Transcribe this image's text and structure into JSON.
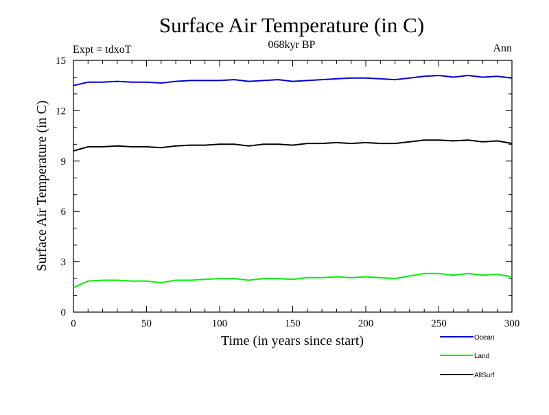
{
  "chart_data": {
    "type": "line",
    "title": "Surface Air Temperature (in C)",
    "subtitle": "068kyr BP",
    "annotation_left": "Expt = tdxoT",
    "annotation_right": "Ann",
    "xlabel": "Time (in years since start)",
    "ylabel": "Surface Air Temperature (in C)",
    "xlim": [
      0,
      300
    ],
    "ylim": [
      0,
      15
    ],
    "xticks": [
      0,
      50,
      100,
      150,
      200,
      250,
      300
    ],
    "yticks": [
      0,
      3,
      6,
      9,
      12,
      15
    ],
    "grid": false,
    "legend_position": "bottom-right",
    "x": [
      0,
      10,
      20,
      30,
      40,
      50,
      60,
      70,
      80,
      90,
      100,
      110,
      120,
      130,
      140,
      150,
      160,
      170,
      180,
      190,
      200,
      210,
      220,
      230,
      240,
      250,
      260,
      270,
      280,
      290,
      300
    ],
    "series": [
      {
        "name": "Ocean",
        "color": "#0000cc",
        "values": [
          13.5,
          13.7,
          13.7,
          13.75,
          13.7,
          13.7,
          13.65,
          13.75,
          13.8,
          13.8,
          13.8,
          13.85,
          13.75,
          13.8,
          13.85,
          13.75,
          13.8,
          13.85,
          13.9,
          13.95,
          13.95,
          13.9,
          13.85,
          13.95,
          14.05,
          14.1,
          14.0,
          14.1,
          14.0,
          14.05,
          13.95
        ]
      },
      {
        "name": "Land",
        "color": "#00ee00",
        "values": [
          1.45,
          1.85,
          1.9,
          1.9,
          1.85,
          1.85,
          1.75,
          1.9,
          1.9,
          1.95,
          2.0,
          2.0,
          1.9,
          2.0,
          2.0,
          1.95,
          2.05,
          2.05,
          2.1,
          2.05,
          2.1,
          2.05,
          2.0,
          2.15,
          2.3,
          2.3,
          2.2,
          2.3,
          2.2,
          2.25,
          2.1
        ]
      },
      {
        "name": "AllSurf",
        "color": "#000000",
        "values": [
          9.6,
          9.85,
          9.85,
          9.9,
          9.85,
          9.85,
          9.8,
          9.9,
          9.95,
          9.95,
          10.0,
          10.0,
          9.9,
          10.0,
          10.0,
          9.95,
          10.05,
          10.05,
          10.1,
          10.05,
          10.1,
          10.05,
          10.05,
          10.15,
          10.25,
          10.25,
          10.2,
          10.25,
          10.15,
          10.2,
          10.05
        ]
      }
    ]
  }
}
